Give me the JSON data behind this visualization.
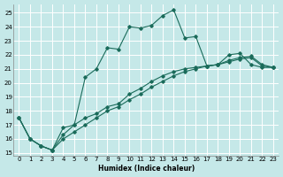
{
  "xlabel": "Humidex (Indice chaleur)",
  "bg_color": "#c5e8e8",
  "line_color": "#1a6b5a",
  "xlim": [
    -0.5,
    23.5
  ],
  "ylim": [
    14.8,
    25.6
  ],
  "xticks": [
    0,
    1,
    2,
    3,
    4,
    5,
    6,
    7,
    8,
    9,
    10,
    11,
    12,
    13,
    14,
    15,
    16,
    17,
    18,
    19,
    20,
    21,
    22,
    23
  ],
  "yticks": [
    15,
    16,
    17,
    18,
    19,
    20,
    21,
    22,
    23,
    24,
    25
  ],
  "l1x": [
    0,
    1,
    2,
    3,
    4,
    5,
    6,
    7,
    8,
    9,
    10,
    11,
    12,
    13,
    14,
    15,
    16,
    17,
    18,
    19,
    20,
    21,
    22,
    23
  ],
  "l1y": [
    17.5,
    16.0,
    15.5,
    15.2,
    16.0,
    16.5,
    17.0,
    17.5,
    18.0,
    18.3,
    18.8,
    19.2,
    19.7,
    20.1,
    20.5,
    20.8,
    21.0,
    21.2,
    21.3,
    21.5,
    21.7,
    21.8,
    21.2,
    21.1
  ],
  "l2x": [
    0,
    1,
    2,
    3,
    4,
    5,
    6,
    7,
    8,
    9,
    10,
    11,
    12,
    13,
    14,
    15,
    16,
    17,
    18,
    19,
    20,
    21,
    22,
    23
  ],
  "l2y": [
    17.5,
    16.0,
    15.5,
    15.2,
    16.8,
    17.0,
    20.4,
    21.0,
    22.5,
    22.4,
    24.0,
    23.9,
    24.1,
    24.8,
    25.2,
    23.2,
    23.3,
    21.2,
    21.3,
    22.0,
    22.1,
    21.3,
    21.1,
    21.1
  ],
  "l3x": [
    0,
    1,
    2,
    3,
    4,
    5,
    6,
    7,
    8,
    9,
    10,
    11,
    12,
    13,
    14,
    15,
    16,
    17,
    18,
    19,
    20,
    21,
    22,
    23
  ],
  "l3y": [
    17.5,
    16.0,
    15.5,
    15.2,
    16.3,
    17.0,
    17.5,
    17.8,
    18.3,
    18.5,
    19.2,
    19.6,
    20.1,
    20.5,
    20.8,
    21.0,
    21.1,
    21.2,
    21.3,
    21.6,
    21.8,
    21.9,
    21.3,
    21.1
  ]
}
